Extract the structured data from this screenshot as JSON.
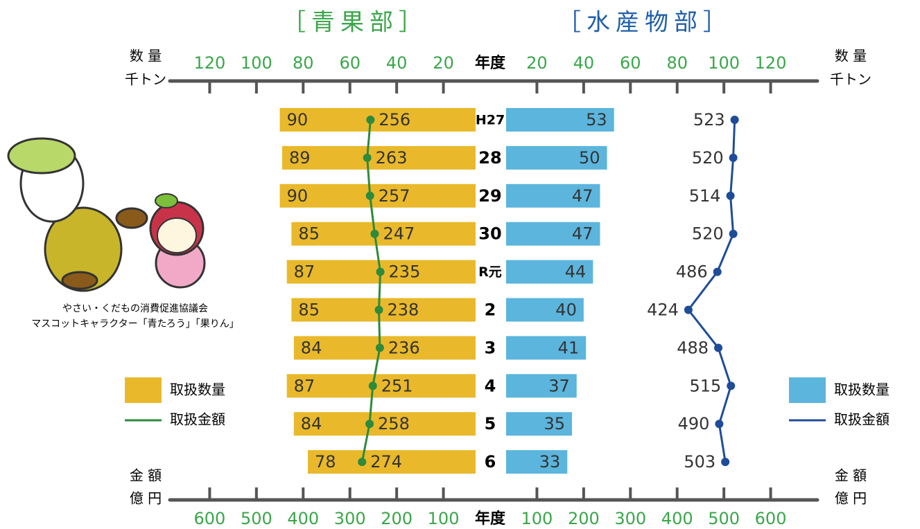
{
  "chart_data": {
    "type": "butterfly",
    "title_left": "［青果部］",
    "title_right": "［水産物部］",
    "center_label": "年度",
    "quantity_label": [
      "数 量",
      "千トン"
    ],
    "amount_label": [
      "金 額",
      "億 円"
    ],
    "categories": [
      "H27",
      "28",
      "29",
      "30",
      "R元",
      "2",
      "3",
      "4",
      "5",
      "6"
    ],
    "xlim": [
      0,
      140
    ],
    "x2lim": [
      0,
      700
    ],
    "xticks_left": [
      120,
      100,
      80,
      60,
      40,
      20
    ],
    "xticks_right": [
      20,
      40,
      60,
      80,
      100,
      120
    ],
    "x2ticks_left": [
      600,
      500,
      400,
      300,
      200,
      100
    ],
    "x2ticks_right": [
      100,
      200,
      300,
      400,
      500,
      600
    ],
    "series": [
      {
        "name": "取扱数量",
        "side": "left",
        "kind": "bar",
        "color": "#e9b92b",
        "values": [
          90,
          89,
          90,
          85,
          87,
          85,
          84,
          87,
          84,
          78
        ]
      },
      {
        "name": "取扱金額",
        "side": "left",
        "kind": "line",
        "color": "#2e8a3c",
        "values": [
          256,
          263,
          257,
          247,
          235,
          238,
          236,
          251,
          258,
          274
        ]
      },
      {
        "name": "取扱数量",
        "side": "right",
        "kind": "bar",
        "color": "#5cb5dd",
        "values": [
          53,
          50,
          47,
          47,
          44,
          40,
          41,
          37,
          35,
          33
        ]
      },
      {
        "name": "取扱金額",
        "side": "right",
        "kind": "line",
        "color": "#1f4c98",
        "values": [
          523,
          520,
          514,
          520,
          486,
          424,
          488,
          515,
          490,
          503
        ]
      }
    ],
    "caption": [
      "やさい・くだもの消費促進協議会",
      "マスコットキャラクター「青たろう」「果りん」"
    ]
  }
}
